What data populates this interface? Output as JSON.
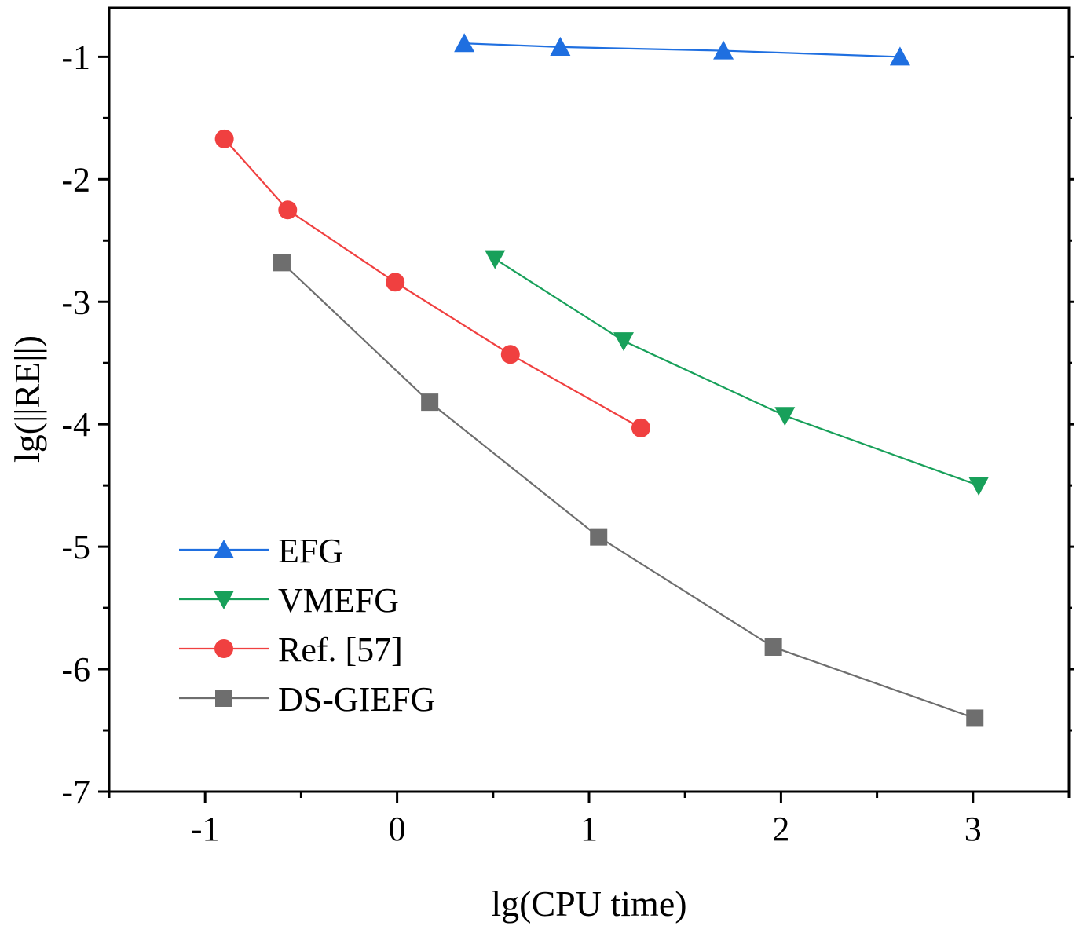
{
  "chart_data": {
    "type": "line",
    "title": "",
    "xlabel": "lg(CPU time)",
    "ylabel": "lg(||RE||)",
    "xlim": [
      -1.5,
      3.5
    ],
    "ylim": [
      -7,
      -0.6
    ],
    "xticks": [
      -1,
      0,
      1,
      2,
      3
    ],
    "xtick_labels": [
      "-1",
      "0",
      "1",
      "2",
      "3"
    ],
    "yticks": [
      -1,
      -2,
      -3,
      -4,
      -5,
      -6,
      -7
    ],
    "ytick_labels": [
      "-1",
      "-2",
      "-3",
      "-4",
      "-5",
      "-6",
      "-7"
    ],
    "grid": false,
    "legend_position": "bottom-left",
    "series": [
      {
        "name": "EFG",
        "marker": "triangle-up",
        "color": "#1f6fe0",
        "x": [
          0.35,
          0.85,
          1.7,
          2.62
        ],
        "y": [
          -0.89,
          -0.92,
          -0.95,
          -1.0
        ]
      },
      {
        "name": "VMEFG",
        "marker": "triangle-down",
        "color": "#18a05a",
        "x": [
          0.51,
          1.18,
          2.02,
          3.03
        ],
        "y": [
          -2.65,
          -3.32,
          -3.93,
          -4.5
        ]
      },
      {
        "name": "Ref. [57]",
        "marker": "circle",
        "color": "#f04040",
        "x": [
          -0.9,
          -0.57,
          -0.01,
          0.59,
          1.27
        ],
        "y": [
          -1.67,
          -2.25,
          -2.84,
          -3.43,
          -4.03
        ]
      },
      {
        "name": "DS-GIEFG",
        "marker": "square",
        "color": "#6e6e6e",
        "x": [
          -0.6,
          0.17,
          1.05,
          1.96,
          3.01
        ],
        "y": [
          -2.68,
          -3.82,
          -4.92,
          -5.82,
          -6.4
        ]
      }
    ]
  }
}
